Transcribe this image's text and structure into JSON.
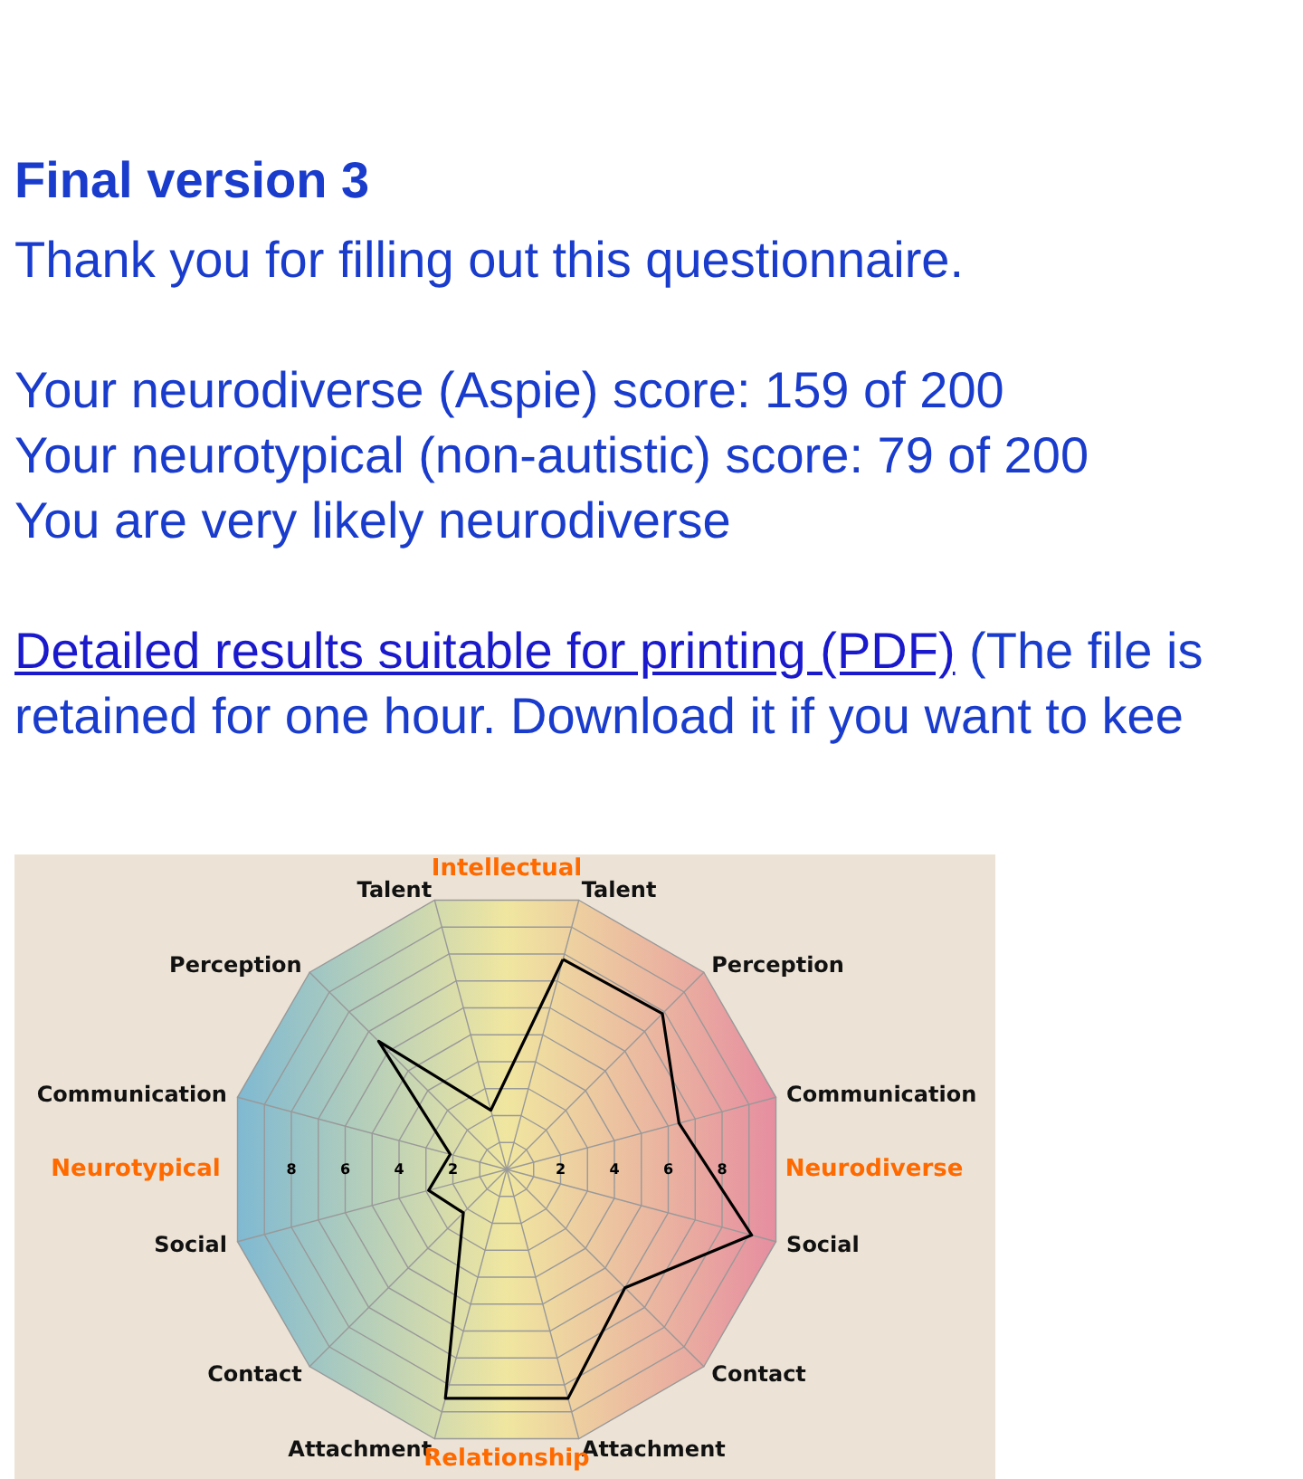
{
  "chart_data": {
    "type": "radar",
    "title": "Final version 3",
    "subtitle": "Thank you for filling out this questionnaire.",
    "annotations": [
      "Your neurodiverse (Aspie) score: 159 of 200",
      "Your neurotypical (non-autistic) score: 79 of 200",
      "You are very likely neurodiverse",
      "Detailed results suitable for printing (PDF)",
      "(The file is retained for one hour. Download it if you want to kee",
      "Intellectual",
      "Neurodiverse",
      "Relationship",
      "Neurotypical"
    ],
    "categories": [
      "Talent",
      "Perception",
      "Communication",
      "Social",
      "Contact",
      "Attachment",
      "Attachment",
      "Contact",
      "Social",
      "Communication",
      "Perception",
      "Talent"
    ],
    "series": [
      {
        "color": "#000000",
        "values": [
          7.8,
          7.9,
          6.4,
          9.1,
          6.0,
          8.5,
          8.5,
          2.2,
          2.9,
          2.1,
          6.5,
          2.2
        ]
      }
    ],
    "ylim": [
      0,
      10
    ],
    "yticks": [
      8,
      6,
      4,
      2,
      2,
      4,
      6,
      8
    ],
    "grid": true,
    "marker": "none",
    "line_style": "solid"
  }
}
